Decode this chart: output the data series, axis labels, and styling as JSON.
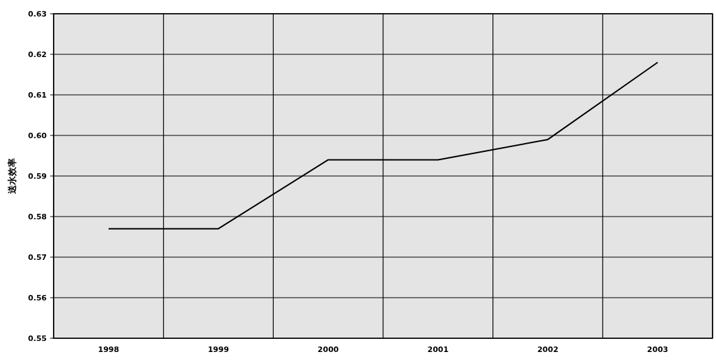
{
  "chart_data": {
    "type": "line",
    "ylabel": "送水效率",
    "categories": [
      "1998",
      "1999",
      "2000",
      "2001",
      "2002",
      "2003"
    ],
    "series": [
      {
        "color": "#000000",
        "values": [
          0.577,
          0.577,
          0.594,
          0.594,
          0.599,
          0.618
        ]
      }
    ],
    "ylim": [
      0.55,
      0.63
    ],
    "yticks": [
      0.55,
      0.56,
      0.57,
      0.58,
      0.59,
      {
        "value": 0.6,
        "label": "0.60"
      },
      0.61,
      0.62,
      0.63
    ],
    "grid": true,
    "marker": "none",
    "line_style": "solid"
  }
}
